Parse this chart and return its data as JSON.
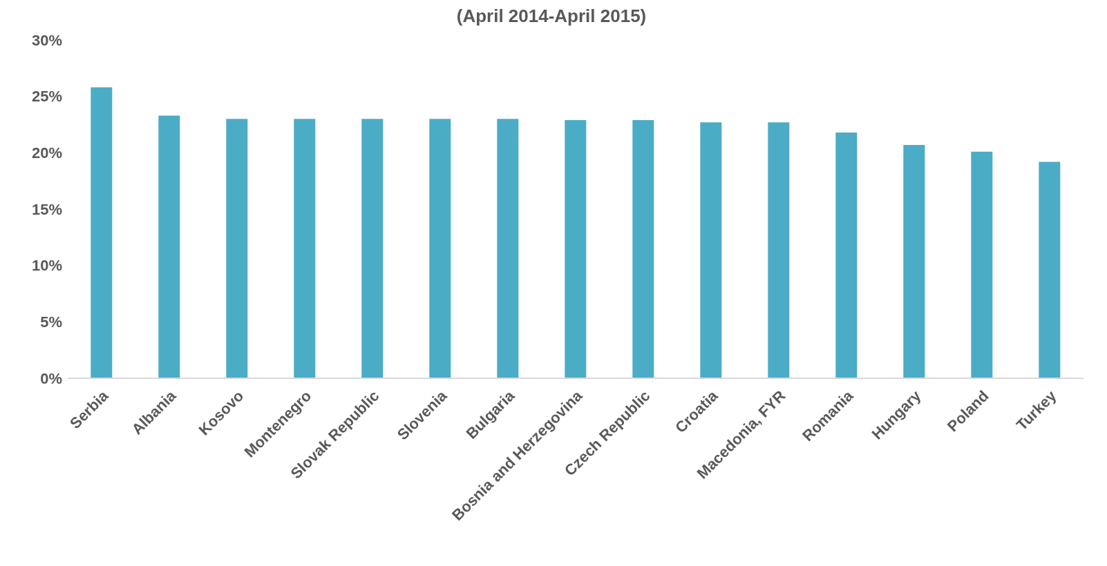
{
  "chart_data": {
    "type": "bar",
    "title": "(April 2014-April 2015)",
    "categories": [
      "Serbia",
      "Albania",
      "Kosovo",
      "Montenegro",
      "Slovak Republic",
      "Slovenia",
      "Bulgaria",
      "Bosnia and Herzegovina",
      "Czech Republic",
      "Croatia",
      "Macedonia, FYR",
      "Romania",
      "Hungary",
      "Poland",
      "Turkey"
    ],
    "values": [
      25.8,
      23.3,
      23.0,
      23.0,
      23.0,
      23.0,
      23.0,
      22.9,
      22.9,
      22.7,
      22.7,
      21.8,
      20.7,
      20.1,
      19.2
    ],
    "color": "#4bacc6",
    "ylim": [
      0,
      30
    ],
    "yticks": [
      {
        "value": 0,
        "label": "0%"
      },
      {
        "value": 5,
        "label": "5%"
      },
      {
        "value": 10,
        "label": "10%"
      },
      {
        "value": 15,
        "label": "15%"
      },
      {
        "value": 20,
        "label": "20%"
      },
      {
        "value": 25,
        "label": "25%"
      },
      {
        "value": 30,
        "label": "30%"
      }
    ],
    "grid": false
  }
}
